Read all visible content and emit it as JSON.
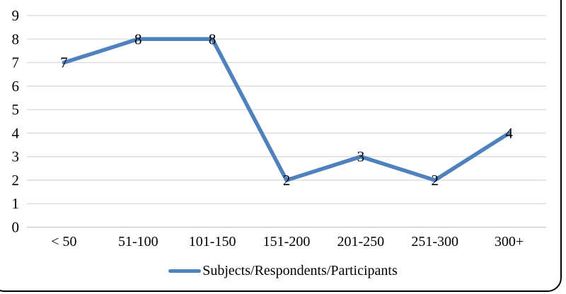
{
  "chart_data": {
    "type": "line",
    "title": "",
    "xlabel": "",
    "ylabel": "",
    "categories": [
      "< 50",
      "51-100",
      "101-150",
      "151-200",
      "201-250",
      "251-300",
      "300+"
    ],
    "series": [
      {
        "name": "Subjects/Respondents/Participants",
        "values": [
          7,
          8,
          8,
          2,
          3,
          2,
          4
        ],
        "color": "#4F81BD",
        "line_width": 5.5,
        "markers": false,
        "data_labels": [
          7,
          8,
          8,
          2,
          3,
          2,
          4
        ]
      }
    ],
    "ylim": [
      0,
      9
    ],
    "yticks": [
      0,
      1,
      2,
      3,
      4,
      5,
      6,
      7,
      8,
      9
    ],
    "grid": "horizontal",
    "gridline_color": "#D9D9D9",
    "axis_line_color": "#C9C9C9",
    "label_color": "#000000",
    "legend_position": "bottom"
  },
  "legend": {
    "swatch_color": "#4F81BD",
    "label": "Subjects/Respondents/Participants"
  },
  "frame": {
    "border_color": "#000000"
  }
}
